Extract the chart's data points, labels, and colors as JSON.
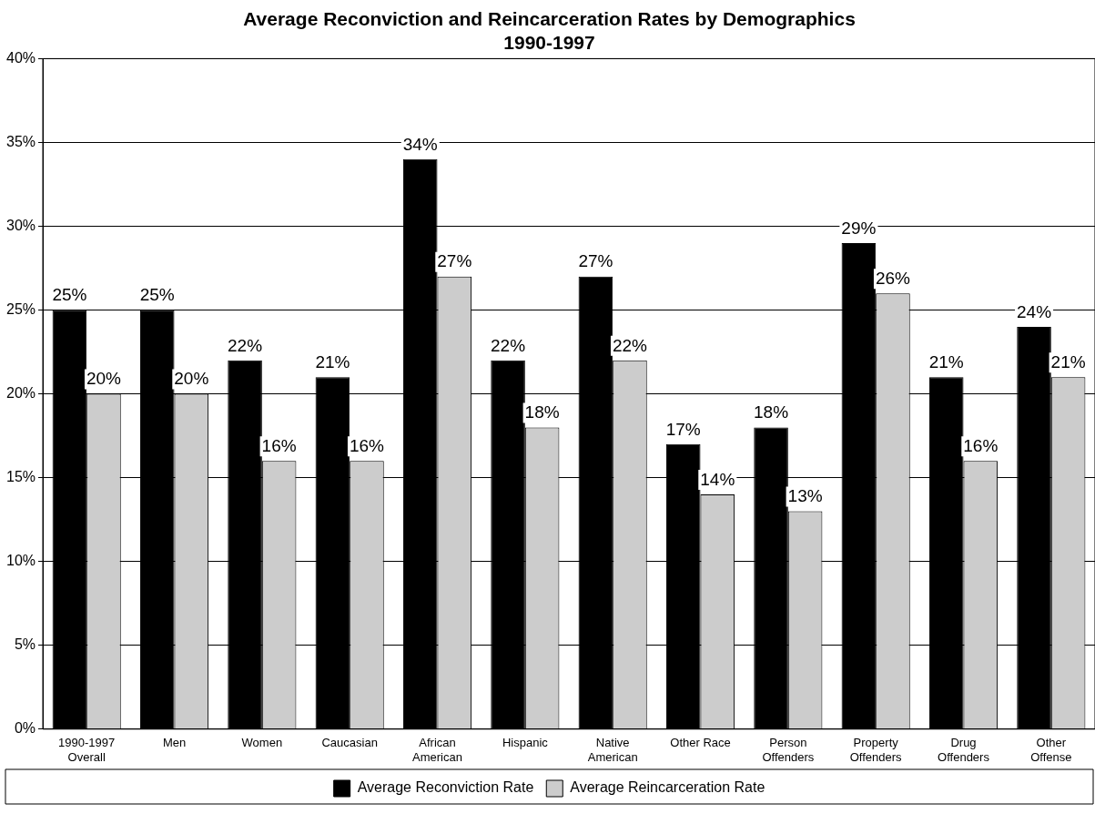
{
  "chart_data": {
    "type": "bar",
    "title": "Average Reconviction and Reincarceration Rates by Demographics\n1990-1997",
    "categories": [
      "1990-1997\nOverall",
      "Men",
      "Women",
      "Caucasian",
      "African\nAmerican",
      "Hispanic",
      "Native\nAmerican",
      "Other Race",
      "Person\nOffenders",
      "Property\nOffenders",
      "Drug\nOffenders",
      "Other\nOffense"
    ],
    "series": [
      {
        "name": "Average Reconviction Rate",
        "color": "#000000",
        "values": [
          25,
          25,
          22,
          21,
          34,
          22,
          27,
          17,
          18,
          29,
          21,
          24
        ],
        "value_labels": [
          "25%",
          "25%",
          "22%",
          "21%",
          "34%",
          "22%",
          "27%",
          "17%",
          "18%",
          "29%",
          "21%",
          "24%"
        ]
      },
      {
        "name": "Average Reincarceration Rate",
        "color": "#cccccc",
        "values": [
          20,
          20,
          16,
          16,
          27,
          18,
          22,
          14,
          13,
          26,
          16,
          21
        ],
        "value_labels": [
          "20%",
          "20%",
          "16%",
          "16%",
          "27%",
          "18%",
          "22%",
          "14%",
          "13%",
          "26%",
          "16%",
          "21%"
        ]
      }
    ],
    "ylim": [
      0,
      40
    ],
    "yticks": [
      {
        "value": 0,
        "label": "0%"
      },
      {
        "value": 5,
        "label": "5%"
      },
      {
        "value": 10,
        "label": "10%"
      },
      {
        "value": 15,
        "label": "15%"
      },
      {
        "value": 20,
        "label": "20%"
      },
      {
        "value": 25,
        "label": "25%"
      },
      {
        "value": 30,
        "label": "30%"
      },
      {
        "value": 35,
        "label": "35%"
      },
      {
        "value": 40,
        "label": "40%"
      }
    ],
    "grid": "y",
    "legend": "bottom"
  }
}
